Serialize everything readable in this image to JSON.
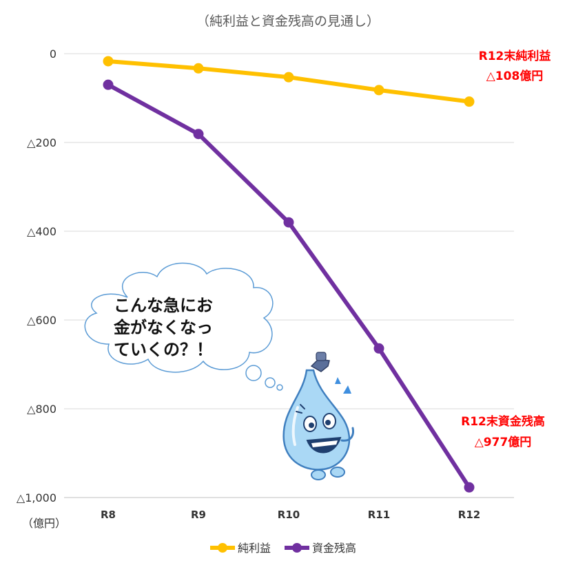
{
  "chart_data": {
    "type": "line",
    "title": "（純利益と資金残高の見通し）",
    "unit_label": "（億円）",
    "categories": [
      "R8",
      "R9",
      "R10",
      "R11",
      "R12"
    ],
    "yticks": [
      {
        "value": 0,
        "label": "0"
      },
      {
        "value": -200,
        "label": "△200"
      },
      {
        "value": -400,
        "label": "△400"
      },
      {
        "value": -600,
        "label": "△600"
      },
      {
        "value": -800,
        "label": "△800"
      },
      {
        "value": -1000,
        "label": "△1,000"
      }
    ],
    "ylim": [
      -1000,
      0
    ],
    "grid": true,
    "legend_position": "bottom",
    "series": [
      {
        "name": "純利益",
        "color": "#ffc000",
        "values": [
          -17,
          -33,
          -53,
          -82,
          -108
        ]
      },
      {
        "name": "資金残高",
        "color": "#7030a0",
        "values": [
          -70,
          -181,
          -380,
          -664,
          -977
        ]
      }
    ],
    "annotations": [
      {
        "lines": [
          "R12末純利益",
          "△108億円"
        ],
        "color": "#ff0000"
      },
      {
        "lines": [
          "R12末資金残高",
          "△977億円"
        ],
        "color": "#ff0000"
      }
    ],
    "speech_bubble": {
      "lines": [
        "こんな急にお",
        "金がなくなっ",
        "ていくの？！"
      ]
    },
    "mascot": "water-drop-character"
  }
}
